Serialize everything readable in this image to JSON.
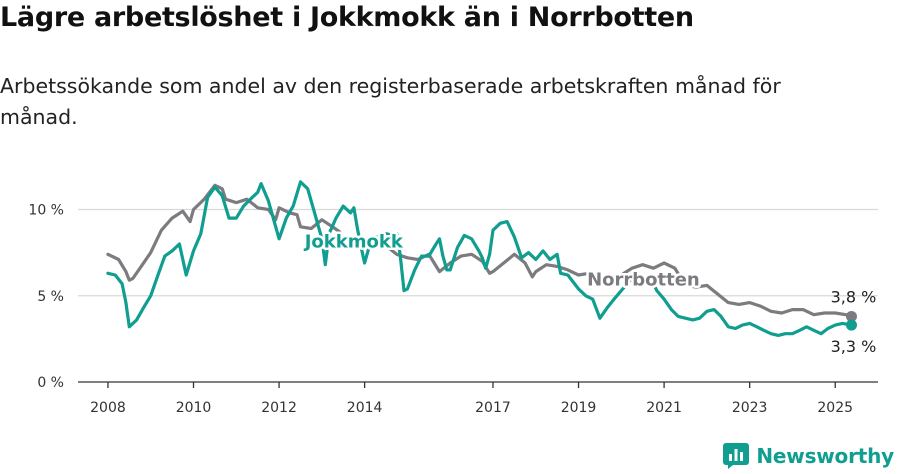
{
  "title": "Lägre arbetslöshet i Jokkmokk än i Norrbotten",
  "subtitle": "Arbetssökande som andel av den registerbaserade arbetskraften månad för månad.",
  "brand": {
    "name": "Newsworthy",
    "icon": "newsworthy-logo-icon",
    "color": "#0f9e8f"
  },
  "chart_data": {
    "type": "line",
    "xlim": [
      2007.3,
      2026.0
    ],
    "ylim": [
      0,
      12
    ],
    "y_ticks": [
      {
        "value": 0,
        "label": "0 %"
      },
      {
        "value": 5,
        "label": "5 %"
      },
      {
        "value": 10,
        "label": "10 %"
      }
    ],
    "x_ticks": [
      {
        "value": 2008,
        "label": "2008"
      },
      {
        "value": 2010,
        "label": "2010"
      },
      {
        "value": 2012,
        "label": "2012"
      },
      {
        "value": 2014,
        "label": "2014"
      },
      {
        "value": 2017,
        "label": "2017"
      },
      {
        "value": 2019,
        "label": "2019"
      },
      {
        "value": 2021,
        "label": "2021"
      },
      {
        "value": 2023,
        "label": "2023"
      },
      {
        "value": 2025,
        "label": "2025"
      }
    ],
    "grid": true,
    "series": [
      {
        "name": "Norrbotten",
        "color": "#7b7b80",
        "label_position": [
          2019.2,
          5.6
        ],
        "end_label": "3,8 %",
        "end_label_side": "above",
        "points": [
          [
            2008.0,
            7.4
          ],
          [
            2008.25,
            7.1
          ],
          [
            2008.42,
            6.4
          ],
          [
            2008.5,
            5.9
          ],
          [
            2008.58,
            6.0
          ],
          [
            2008.75,
            6.6
          ],
          [
            2009.0,
            7.5
          ],
          [
            2009.25,
            8.8
          ],
          [
            2009.5,
            9.5
          ],
          [
            2009.75,
            9.9
          ],
          [
            2009.92,
            9.3
          ],
          [
            2010.0,
            10.0
          ],
          [
            2010.25,
            10.6
          ],
          [
            2010.5,
            11.4
          ],
          [
            2010.67,
            11.2
          ],
          [
            2010.75,
            10.6
          ],
          [
            2011.0,
            10.4
          ],
          [
            2011.25,
            10.6
          ],
          [
            2011.5,
            10.1
          ],
          [
            2011.75,
            10.0
          ],
          [
            2011.92,
            9.4
          ],
          [
            2012.0,
            10.1
          ],
          [
            2012.25,
            9.8
          ],
          [
            2012.42,
            9.7
          ],
          [
            2012.5,
            9.0
          ],
          [
            2012.75,
            8.9
          ],
          [
            2013.0,
            9.4
          ],
          [
            2013.25,
            9.0
          ],
          [
            2013.42,
            8.7
          ],
          [
            2013.5,
            8.3
          ],
          [
            2013.75,
            8.2
          ],
          [
            2014.0,
            8.3
          ],
          [
            2014.25,
            8.2
          ],
          [
            2014.5,
            7.9
          ],
          [
            2014.75,
            7.4
          ],
          [
            2015.0,
            7.2
          ],
          [
            2015.25,
            7.1
          ],
          [
            2015.5,
            7.4
          ],
          [
            2015.75,
            6.4
          ],
          [
            2016.0,
            6.9
          ],
          [
            2016.25,
            7.3
          ],
          [
            2016.5,
            7.4
          ],
          [
            2016.75,
            7.0
          ],
          [
            2016.92,
            6.3
          ],
          [
            2017.0,
            6.4
          ],
          [
            2017.25,
            6.9
          ],
          [
            2017.5,
            7.4
          ],
          [
            2017.75,
            6.9
          ],
          [
            2017.92,
            6.1
          ],
          [
            2018.0,
            6.4
          ],
          [
            2018.25,
            6.8
          ],
          [
            2018.5,
            6.7
          ],
          [
            2018.75,
            6.5
          ],
          [
            2019.0,
            6.2
          ],
          [
            2019.25,
            6.3
          ],
          [
            2019.5,
            6.2
          ],
          [
            2019.75,
            6.0
          ],
          [
            2020.0,
            6.2
          ],
          [
            2020.25,
            6.6
          ],
          [
            2020.5,
            6.8
          ],
          [
            2020.75,
            6.6
          ],
          [
            2021.0,
            6.9
          ],
          [
            2021.25,
            6.6
          ],
          [
            2021.5,
            5.6
          ],
          [
            2021.75,
            5.5
          ],
          [
            2022.0,
            5.6
          ],
          [
            2022.25,
            5.1
          ],
          [
            2022.5,
            4.6
          ],
          [
            2022.75,
            4.5
          ],
          [
            2023.0,
            4.6
          ],
          [
            2023.25,
            4.4
          ],
          [
            2023.5,
            4.1
          ],
          [
            2023.75,
            4.0
          ],
          [
            2024.0,
            4.2
          ],
          [
            2024.25,
            4.2
          ],
          [
            2024.5,
            3.9
          ],
          [
            2024.75,
            4.0
          ],
          [
            2025.0,
            4.0
          ],
          [
            2025.25,
            3.9
          ],
          [
            2025.38,
            3.8
          ]
        ]
      },
      {
        "name": "Jokkmokk",
        "color": "#0f9e8f",
        "label_position": [
          2012.6,
          7.8
        ],
        "end_label": "3,3 %",
        "end_label_side": "below",
        "points": [
          [
            2008.0,
            6.3
          ],
          [
            2008.17,
            6.2
          ],
          [
            2008.33,
            5.7
          ],
          [
            2008.42,
            4.6
          ],
          [
            2008.5,
            3.2
          ],
          [
            2008.67,
            3.6
          ],
          [
            2008.83,
            4.3
          ],
          [
            2009.0,
            5.0
          ],
          [
            2009.17,
            6.2
          ],
          [
            2009.33,
            7.3
          ],
          [
            2009.5,
            7.6
          ],
          [
            2009.67,
            8.0
          ],
          [
            2009.83,
            6.2
          ],
          [
            2010.0,
            7.6
          ],
          [
            2010.17,
            8.6
          ],
          [
            2010.33,
            10.7
          ],
          [
            2010.5,
            11.3
          ],
          [
            2010.67,
            10.8
          ],
          [
            2010.83,
            9.5
          ],
          [
            2011.0,
            9.5
          ],
          [
            2011.17,
            10.2
          ],
          [
            2011.33,
            10.6
          ],
          [
            2011.5,
            11.0
          ],
          [
            2011.58,
            11.5
          ],
          [
            2011.75,
            10.5
          ],
          [
            2012.0,
            8.3
          ],
          [
            2012.17,
            9.5
          ],
          [
            2012.33,
            10.2
          ],
          [
            2012.5,
            11.6
          ],
          [
            2012.67,
            11.2
          ],
          [
            2012.83,
            9.8
          ],
          [
            2013.0,
            8.3
          ],
          [
            2013.08,
            6.8
          ],
          [
            2013.17,
            8.6
          ],
          [
            2013.33,
            9.5
          ],
          [
            2013.5,
            10.2
          ],
          [
            2013.67,
            9.8
          ],
          [
            2013.75,
            10.1
          ],
          [
            2013.83,
            8.9
          ],
          [
            2013.92,
            7.8
          ],
          [
            2014.0,
            6.9
          ],
          [
            2014.17,
            8.4
          ],
          [
            2014.33,
            8.4
          ],
          [
            2014.5,
            8.6
          ],
          [
            2014.67,
            8.5
          ],
          [
            2014.75,
            8.6
          ],
          [
            2014.83,
            7.4
          ],
          [
            2014.92,
            5.3
          ],
          [
            2015.0,
            5.4
          ],
          [
            2015.17,
            6.5
          ],
          [
            2015.33,
            7.3
          ],
          [
            2015.5,
            7.3
          ],
          [
            2015.67,
            8.0
          ],
          [
            2015.75,
            8.3
          ],
          [
            2015.83,
            7.3
          ],
          [
            2015.92,
            6.5
          ],
          [
            2016.0,
            6.5
          ],
          [
            2016.17,
            7.8
          ],
          [
            2016.33,
            8.5
          ],
          [
            2016.5,
            8.3
          ],
          [
            2016.67,
            7.6
          ],
          [
            2016.75,
            7.2
          ],
          [
            2016.83,
            6.6
          ],
          [
            2016.92,
            7.4
          ],
          [
            2017.0,
            8.8
          ],
          [
            2017.17,
            9.2
          ],
          [
            2017.33,
            9.3
          ],
          [
            2017.5,
            8.4
          ],
          [
            2017.67,
            7.2
          ],
          [
            2017.83,
            7.5
          ],
          [
            2018.0,
            7.1
          ],
          [
            2018.17,
            7.6
          ],
          [
            2018.33,
            7.1
          ],
          [
            2018.5,
            7.4
          ],
          [
            2018.58,
            6.3
          ],
          [
            2018.75,
            6.2
          ],
          [
            2019.0,
            5.4
          ],
          [
            2019.17,
            5.0
          ],
          [
            2019.33,
            4.8
          ],
          [
            2019.5,
            3.7
          ],
          [
            2019.67,
            4.3
          ],
          [
            2019.83,
            4.8
          ],
          [
            2020.0,
            5.3
          ],
          [
            2020.17,
            5.8
          ],
          [
            2020.33,
            6.1
          ],
          [
            2020.5,
            5.9
          ],
          [
            2020.67,
            6.1
          ],
          [
            2020.83,
            5.3
          ],
          [
            2021.0,
            4.8
          ],
          [
            2021.17,
            4.2
          ],
          [
            2021.33,
            3.8
          ],
          [
            2021.5,
            3.7
          ],
          [
            2021.67,
            3.6
          ],
          [
            2021.83,
            3.7
          ],
          [
            2022.0,
            4.1
          ],
          [
            2022.17,
            4.2
          ],
          [
            2022.33,
            3.8
          ],
          [
            2022.5,
            3.2
          ],
          [
            2022.67,
            3.1
          ],
          [
            2022.83,
            3.3
          ],
          [
            2023.0,
            3.4
          ],
          [
            2023.17,
            3.2
          ],
          [
            2023.33,
            3.0
          ],
          [
            2023.5,
            2.8
          ],
          [
            2023.67,
            2.7
          ],
          [
            2023.83,
            2.8
          ],
          [
            2024.0,
            2.8
          ],
          [
            2024.17,
            3.0
          ],
          [
            2024.33,
            3.2
          ],
          [
            2024.5,
            3.0
          ],
          [
            2024.67,
            2.8
          ],
          [
            2024.83,
            3.1
          ],
          [
            2025.0,
            3.3
          ],
          [
            2025.17,
            3.4
          ],
          [
            2025.38,
            3.3
          ]
        ]
      }
    ]
  }
}
